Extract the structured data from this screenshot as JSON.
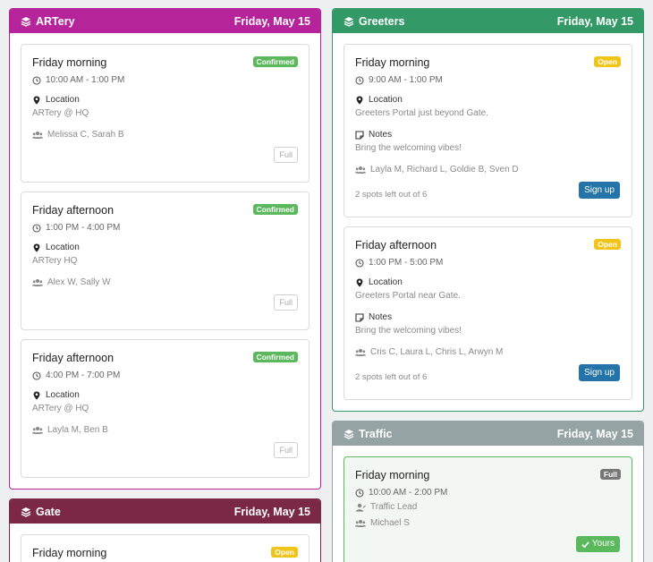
{
  "panels": {
    "artery": {
      "title": "ARTery",
      "date": "Friday, May 15",
      "color": "#b5249a",
      "cards": [
        {
          "title": "Friday morning",
          "badge": "Confirmed",
          "time": "10:00 AM - 1:00 PM",
          "location_label": "Location",
          "location": "ARTery @ HQ",
          "people": "Melissa C, Sarah B",
          "button": "Full"
        },
        {
          "title": "Friday afternoon",
          "badge": "Confirmed",
          "time": "1:00 PM - 4:00 PM",
          "location_label": "Location",
          "location": "ARTery HQ",
          "people": "Alex W, Sally W",
          "button": "Full"
        },
        {
          "title": "Friday afternoon",
          "badge": "Confirmed",
          "time": "4:00 PM - 7:00 PM",
          "location_label": "Location",
          "location": "ARTery @ HQ",
          "people": "Layla M, Ben B",
          "button": "Full"
        }
      ]
    },
    "gate": {
      "title": "Gate",
      "date": "Friday, May 15",
      "color": "#7b2746",
      "cards": [
        {
          "title": "Friday morning",
          "badge": "Open"
        }
      ]
    },
    "greeters": {
      "title": "Greeters",
      "date": "Friday, May 15",
      "color": "#339966",
      "cards": [
        {
          "title": "Friday morning",
          "badge": "Open",
          "time": "9:00 AM - 1:00 PM",
          "location_label": "Location",
          "location": "Greeters Portal just beyond Gate.",
          "notes_label": "Notes",
          "notes": "Bring the welcoming vibes!",
          "people": "Layla M, Richard L, Goldie B, Sven D",
          "spots": "2 spots left out of 6",
          "button": "Sign up"
        },
        {
          "title": "Friday afternoon",
          "badge": "Open",
          "time": "1:00 PM - 5:00 PM",
          "location_label": "Location",
          "location": "Greeters Portal near Gate.",
          "notes_label": "Notes",
          "notes": "Bring the welcoming vibes!",
          "people": "Cris C, Laura L, Chris L, Arwyn M",
          "spots": "2 spots left out of 6",
          "button": "Sign up"
        }
      ]
    },
    "traffic": {
      "title": "Traffic",
      "date": "Friday, May 15",
      "color": "#95a3a4",
      "cards": [
        {
          "title": "Friday morning",
          "badge": "Full",
          "time": "10:00 AM - 2:00 PM",
          "role": "Traffic Lead",
          "people": "Michael S",
          "button": "Yours"
        }
      ]
    }
  }
}
